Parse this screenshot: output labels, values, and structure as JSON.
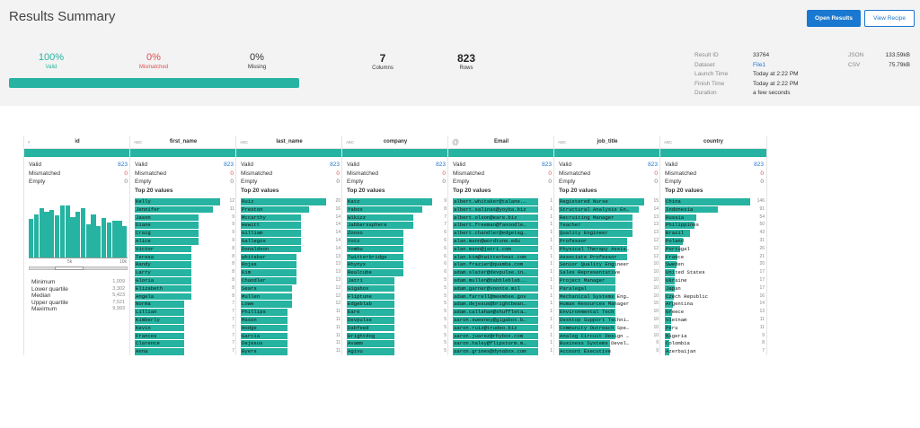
{
  "header": {
    "title": "Results Summary",
    "open_results": "Open Results",
    "view_recipe": "View Recipe"
  },
  "stats": {
    "valid": {
      "value": "100%",
      "label": "Valid",
      "color": "#26b3a1"
    },
    "mismatched": {
      "value": "0%",
      "label": "Mismatched",
      "color": "#e04f4f"
    },
    "missing": {
      "value": "0%",
      "label": "Missing",
      "color": "#333333"
    },
    "columns": {
      "value": "7",
      "label": "Columns"
    },
    "rows": {
      "value": "823",
      "label": "Rows"
    },
    "progress_fraction": 1.0
  },
  "meta": {
    "labels": [
      "Result ID",
      "Dataset",
      "Launch Time",
      "Finish Time",
      "Duration"
    ],
    "values": [
      "33764",
      "File1",
      "Today at 2:22 PM",
      "Today at 2:22 PM",
      "a few seconds"
    ],
    "exports": [
      {
        "label": "JSON",
        "size": "133.59kB"
      },
      {
        "label": "CSV",
        "size": "75.79kB"
      }
    ]
  },
  "labels": {
    "valid": "Valid",
    "mismatched": "Mismatched",
    "empty": "Empty",
    "top20": "Top 20 values"
  },
  "colors": {
    "teal": "#26b3a1",
    "blue": "#1a78d0",
    "red": "#e04f4f"
  },
  "columns": [
    {
      "name": "id",
      "type": "#",
      "valid": "823",
      "mismatched": "0",
      "empty": "0",
      "histogram": [
        0.55,
        0.62,
        0.7,
        0.65,
        0.68,
        0.6,
        0.75,
        0.74,
        0.58,
        0.66,
        0.7,
        0.48,
        0.62,
        0.45,
        0.57,
        0.5,
        0.53,
        0.53,
        0.45
      ],
      "axis_ticks": [
        "5k",
        "10k"
      ],
      "summary": [
        {
          "label": "Minimum",
          "value": "1,009"
        },
        {
          "label": "Lower quartile",
          "value": "3,302"
        },
        {
          "label": "Median",
          "value": "5,423"
        },
        {
          "label": "Upper quartile",
          "value": "7,521"
        },
        {
          "label": "Maximum",
          "value": "9,993"
        }
      ]
    },
    {
      "name": "first_name",
      "type": "ABC",
      "valid": "823",
      "mismatched": "0",
      "empty": "0",
      "top": [
        {
          "v": "Kelly",
          "c": "12"
        },
        {
          "v": "Jennifer",
          "c": "11"
        },
        {
          "v": "Jason",
          "c": "9"
        },
        {
          "v": "Diane",
          "c": "9"
        },
        {
          "v": "Craig",
          "c": "9"
        },
        {
          "v": "Alice",
          "c": "9"
        },
        {
          "v": "Victor",
          "c": "8"
        },
        {
          "v": "Teresa",
          "c": "8"
        },
        {
          "v": "Randy",
          "c": "8"
        },
        {
          "v": "Larry",
          "c": "8"
        },
        {
          "v": "Gloria",
          "c": "8"
        },
        {
          "v": "Elizabeth",
          "c": "8"
        },
        {
          "v": "Angela",
          "c": "8"
        },
        {
          "v": "Norma",
          "c": "7"
        },
        {
          "v": "Lillian",
          "c": "7"
        },
        {
          "v": "Kimberly",
          "c": "7"
        },
        {
          "v": "Kevin",
          "c": "7"
        },
        {
          "v": "Frances",
          "c": "7"
        },
        {
          "v": "Clarence",
          "c": "7"
        },
        {
          "v": "Anna",
          "c": "7"
        }
      ]
    },
    {
      "name": "last_name",
      "type": "ABC",
      "valid": "823",
      "mismatched": "0",
      "empty": "0",
      "top": [
        {
          "v": "Ruiz",
          "c": "20"
        },
        {
          "v": "Preston",
          "c": "16"
        },
        {
          "v": "Mccarthy",
          "c": "14"
        },
        {
          "v": "Hewitt",
          "c": "14"
        },
        {
          "v": "Gilliam",
          "c": "14"
        },
        {
          "v": "Gallegos",
          "c": "14"
        },
        {
          "v": "Donaldson",
          "c": "14"
        },
        {
          "v": "whitaker",
          "c": "13"
        },
        {
          "v": "Rojas",
          "c": "13"
        },
        {
          "v": "Kim",
          "c": "13"
        },
        {
          "v": "Chandler",
          "c": "13"
        },
        {
          "v": "Sears",
          "c": "12"
        },
        {
          "v": "Mullen",
          "c": "12"
        },
        {
          "v": "Lowe",
          "c": "12"
        },
        {
          "v": "Phillips",
          "c": "11"
        },
        {
          "v": "Mason",
          "c": "11"
        },
        {
          "v": "Hodge",
          "c": "11"
        },
        {
          "v": "Garcia",
          "c": "11"
        },
        {
          "v": "Dejesus",
          "c": "11"
        },
        {
          "v": "Byers",
          "c": "11"
        }
      ]
    },
    {
      "name": "company",
      "type": "ABC",
      "valid": "823",
      "mismatched": "0",
      "empty": "0",
      "top": [
        {
          "v": "Katz",
          "c": "9"
        },
        {
          "v": "Yabox",
          "c": "8"
        },
        {
          "v": "Wikizz",
          "c": "7"
        },
        {
          "v": "Jabberssphere",
          "c": "7"
        },
        {
          "v": "Zooxo",
          "c": "6"
        },
        {
          "v": "Yotz",
          "c": "6"
        },
        {
          "v": "Yombu",
          "c": "6"
        },
        {
          "v": "Twitterbridge",
          "c": "6"
        },
        {
          "v": "Rhynyx",
          "c": "6"
        },
        {
          "v": "Realcube",
          "c": "6"
        },
        {
          "v": "Jatri",
          "c": "5"
        },
        {
          "v": "Gigabox",
          "c": "5"
        },
        {
          "v": "Fliptune",
          "c": "5"
        },
        {
          "v": "Edgeblab",
          "c": "5"
        },
        {
          "v": "Eare",
          "c": "5"
        },
        {
          "v": "Devpulse",
          "c": "5"
        },
        {
          "v": "Dabfeed",
          "c": "5"
        },
        {
          "v": "Brightdog",
          "c": "5"
        },
        {
          "v": "Avamm",
          "c": "5"
        },
        {
          "v": "Agivu",
          "c": "5"
        }
      ]
    },
    {
      "name": "Email",
      "type": "@",
      "valid": "823",
      "mismatched": "0",
      "empty": "0",
      "top": [
        {
          "v": "albert.whitaker@talane.…",
          "c": "1"
        },
        {
          "v": "albert.salinas@yoyba.biz",
          "c": "1"
        },
        {
          "v": "albert.olson@eare.biz",
          "c": "1"
        },
        {
          "v": "albert.freeman@fanoodle…",
          "c": "1"
        },
        {
          "v": "albert.chandler@edgetag…",
          "c": "1"
        },
        {
          "v": "alan.mann@wordtune.edu",
          "c": "1"
        },
        {
          "v": "alan.mann@jatri.com",
          "c": "1"
        },
        {
          "v": "alan.kim@twitterbeat.com",
          "c": "1"
        },
        {
          "v": "alan.frazier@quamba.com",
          "c": "1"
        },
        {
          "v": "adam.slater@devpulse.in…",
          "c": "1"
        },
        {
          "v": "adam.mullen@babbleblab.…",
          "c": "1"
        },
        {
          "v": "adam.garner@voonte.mil",
          "c": "1"
        },
        {
          "v": "adam.farrell@meembee.gov",
          "c": "1"
        },
        {
          "v": "adam.dejesus@brightbean…",
          "c": "1"
        },
        {
          "v": "adam.callahan@shuffleta…",
          "c": "1"
        },
        {
          "v": "aaron.sweeney@gigabox.b…",
          "c": "1"
        },
        {
          "v": "aaron.ruiz@trudeo.biz",
          "c": "1"
        },
        {
          "v": "aaron.juarez@rhybox.com",
          "c": "1"
        },
        {
          "v": "aaron.haley@flipstorm.m…",
          "c": "1"
        },
        {
          "v": "aaron.grimes@dynabox.com",
          "c": "1"
        }
      ]
    },
    {
      "name": "job_title",
      "type": "ABC",
      "valid": "823",
      "mismatched": "0",
      "empty": "0",
      "top": [
        {
          "v": "Registered Nurse",
          "c": "15"
        },
        {
          "v": "Structural Analysis En…",
          "c": "14"
        },
        {
          "v": "Recruiting Manager",
          "c": "13"
        },
        {
          "v": "Teacher",
          "c": "13"
        },
        {
          "v": "Quality Engineer",
          "c": "13"
        },
        {
          "v": "Professor",
          "c": "12"
        },
        {
          "v": "Physical Therapy Assis…",
          "c": "12"
        },
        {
          "v": "Associate Professor",
          "c": "12"
        },
        {
          "v": "Senior Quality Engineer",
          "c": "10"
        },
        {
          "v": "Sales Representative",
          "c": "10"
        },
        {
          "v": "Project Manager",
          "c": "10"
        },
        {
          "v": "Paralegal",
          "c": "10"
        },
        {
          "v": "Mechanical Systems Eng…",
          "c": "10"
        },
        {
          "v": "Human Resources Manager",
          "c": "10"
        },
        {
          "v": "Environmental Tech",
          "c": "10"
        },
        {
          "v": "Desktop Support Techni…",
          "c": "10"
        },
        {
          "v": "Community Outreach Spe…",
          "c": "10"
        },
        {
          "v": "Analog Circuit Design …",
          "c": "10"
        },
        {
          "v": "Business Systems Devel…",
          "c": "9"
        },
        {
          "v": "Account Executive",
          "c": "9"
        }
      ]
    },
    {
      "name": "country",
      "type": "ABC",
      "valid": "823",
      "mismatched": "0",
      "empty": "0",
      "top": [
        {
          "v": "China",
          "c": "146"
        },
        {
          "v": "Indonesia",
          "c": "91"
        },
        {
          "v": "Russia",
          "c": "54"
        },
        {
          "v": "Philippines",
          "c": "50"
        },
        {
          "v": "Brazil",
          "c": "43"
        },
        {
          "v": "Poland",
          "c": "31"
        },
        {
          "v": "Portugal",
          "c": "26"
        },
        {
          "v": "France",
          "c": "21"
        },
        {
          "v": "Sweden",
          "c": "20"
        },
        {
          "v": "United States",
          "c": "17"
        },
        {
          "v": "Ukraine",
          "c": "17"
        },
        {
          "v": "Japan",
          "c": "17"
        },
        {
          "v": "Czech Republic",
          "c": "16"
        },
        {
          "v": "Argentina",
          "c": "14"
        },
        {
          "v": "Greece",
          "c": "13"
        },
        {
          "v": "Vietnam",
          "c": "11"
        },
        {
          "v": "Peru",
          "c": "11"
        },
        {
          "v": "Nigeria",
          "c": "9"
        },
        {
          "v": "Colombia",
          "c": "8"
        },
        {
          "v": "Azerbaijan",
          "c": "7"
        }
      ]
    }
  ]
}
